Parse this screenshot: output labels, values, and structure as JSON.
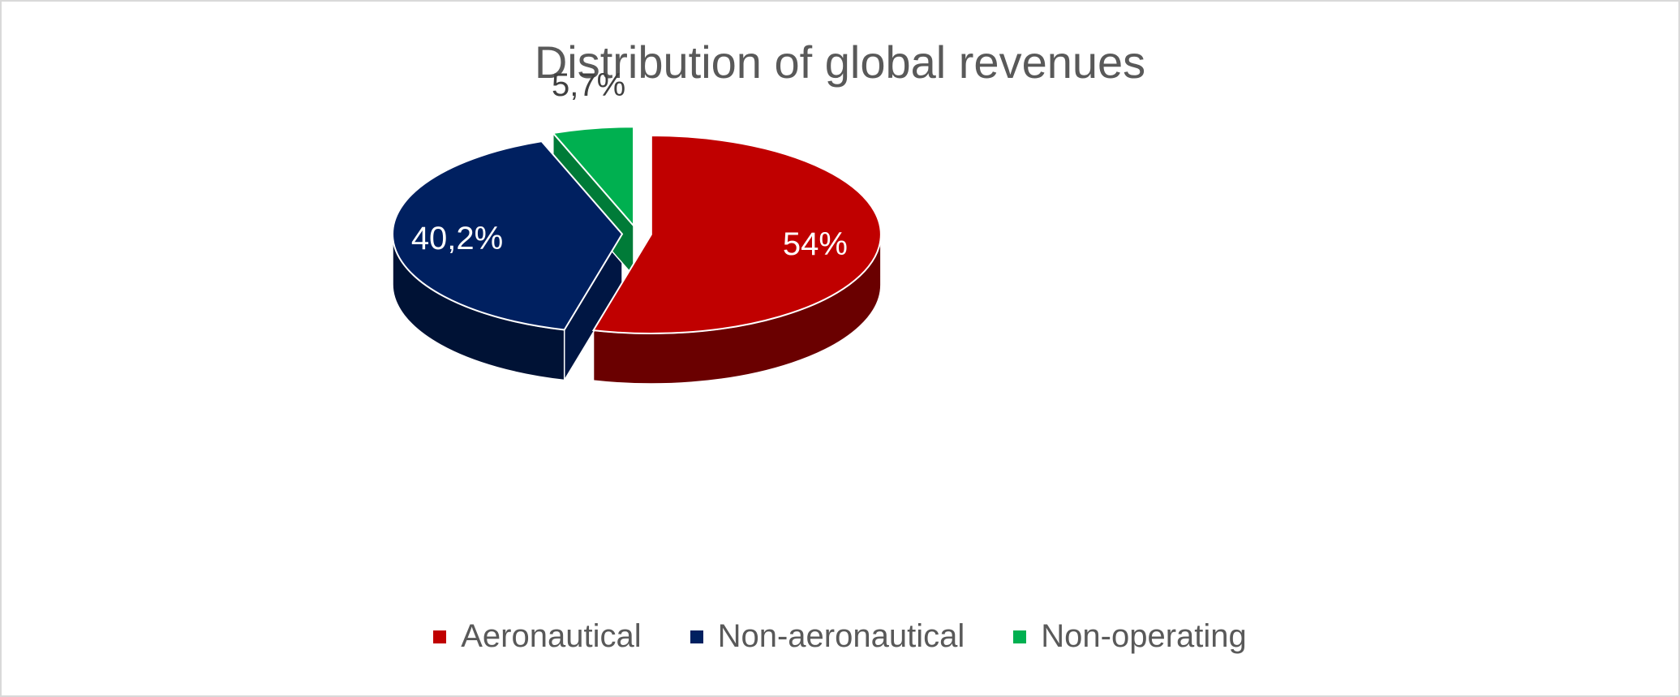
{
  "chart_data": {
    "type": "pie",
    "title": "Distribution of global revenues",
    "categories": [
      "Aeronautical",
      "Non-aeronautical",
      "Non-operating"
    ],
    "values": [
      54,
      40.2,
      5.7
    ],
    "data_labels": [
      "54%",
      "40,2%",
      "5,7%"
    ],
    "colors": [
      "#C00000",
      "#002060",
      "#00B050"
    ],
    "exploded": true,
    "three_d": true,
    "legend_position": "bottom"
  }
}
